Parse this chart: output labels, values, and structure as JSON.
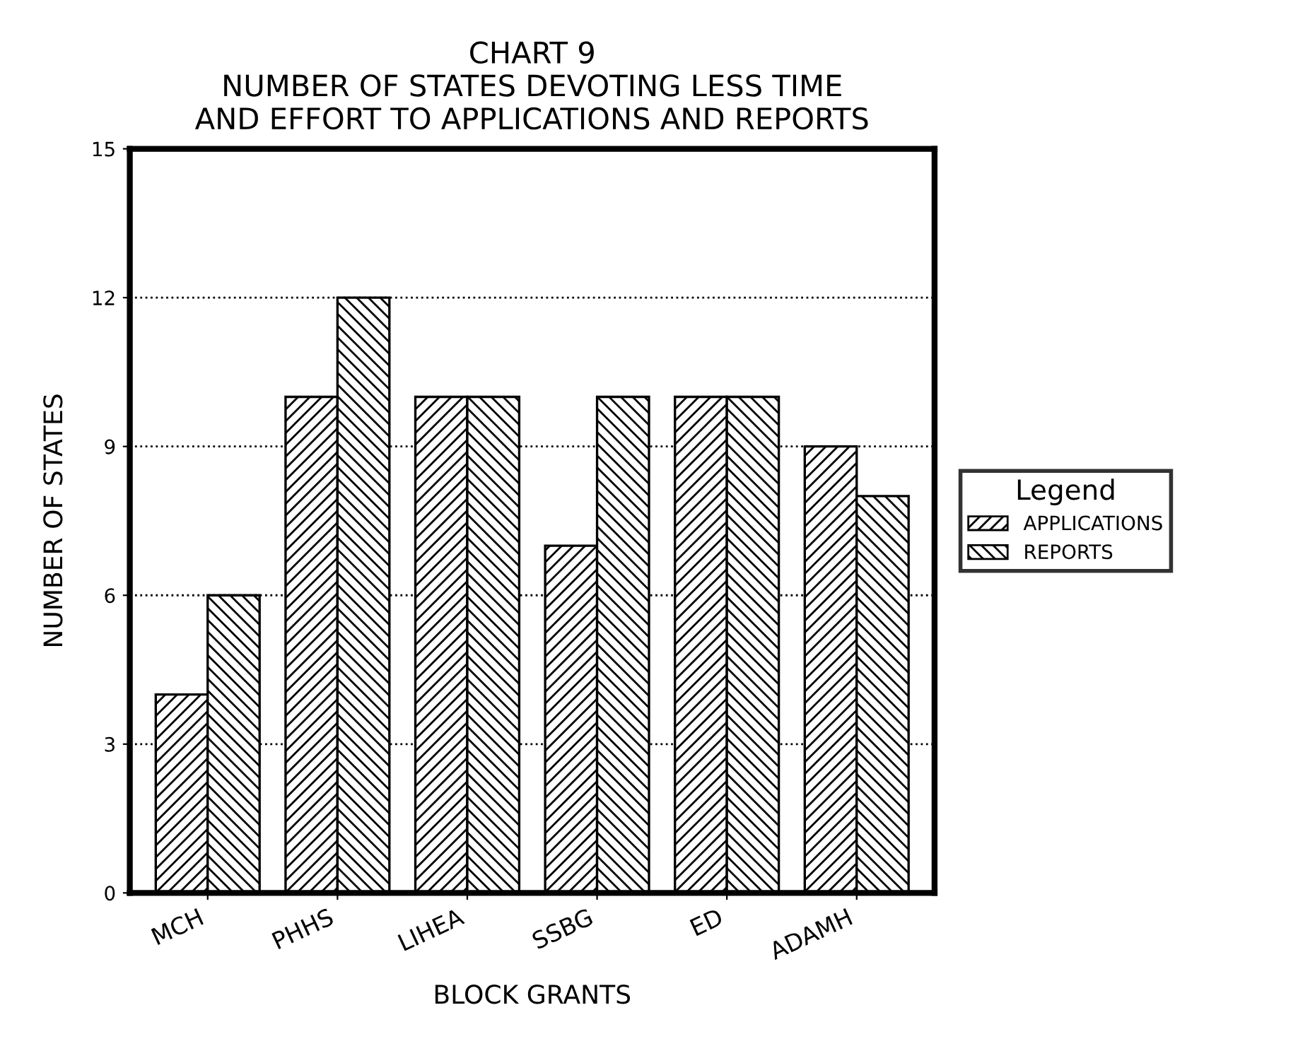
{
  "chart_data": {
    "type": "bar",
    "title": "CHART 9",
    "subtitle": "NUMBER OF STATES DEVOTING LESS TIME\nAND EFFORT TO APPLICATIONS AND REPORTS",
    "xlabel": "BLOCK GRANTS",
    "ylabel": "NUMBER OF STATES",
    "legend_title": "Legend",
    "categories": [
      "MCH",
      "PHHS",
      "LIHEA",
      "SSBG",
      "ED",
      "ADAMH"
    ],
    "series": [
      {
        "name": "APPLICATIONS",
        "color": "#000000",
        "values": [
          4,
          10,
          10,
          7,
          10,
          9
        ]
      },
      {
        "name": "REPORTS",
        "color": "#000000",
        "values": [
          6,
          12,
          10,
          10,
          10,
          8
        ]
      }
    ],
    "ylim": [
      0,
      15
    ],
    "yticks": [
      0,
      3,
      6,
      9,
      12,
      15
    ],
    "grid": "y",
    "legend": "right"
  }
}
